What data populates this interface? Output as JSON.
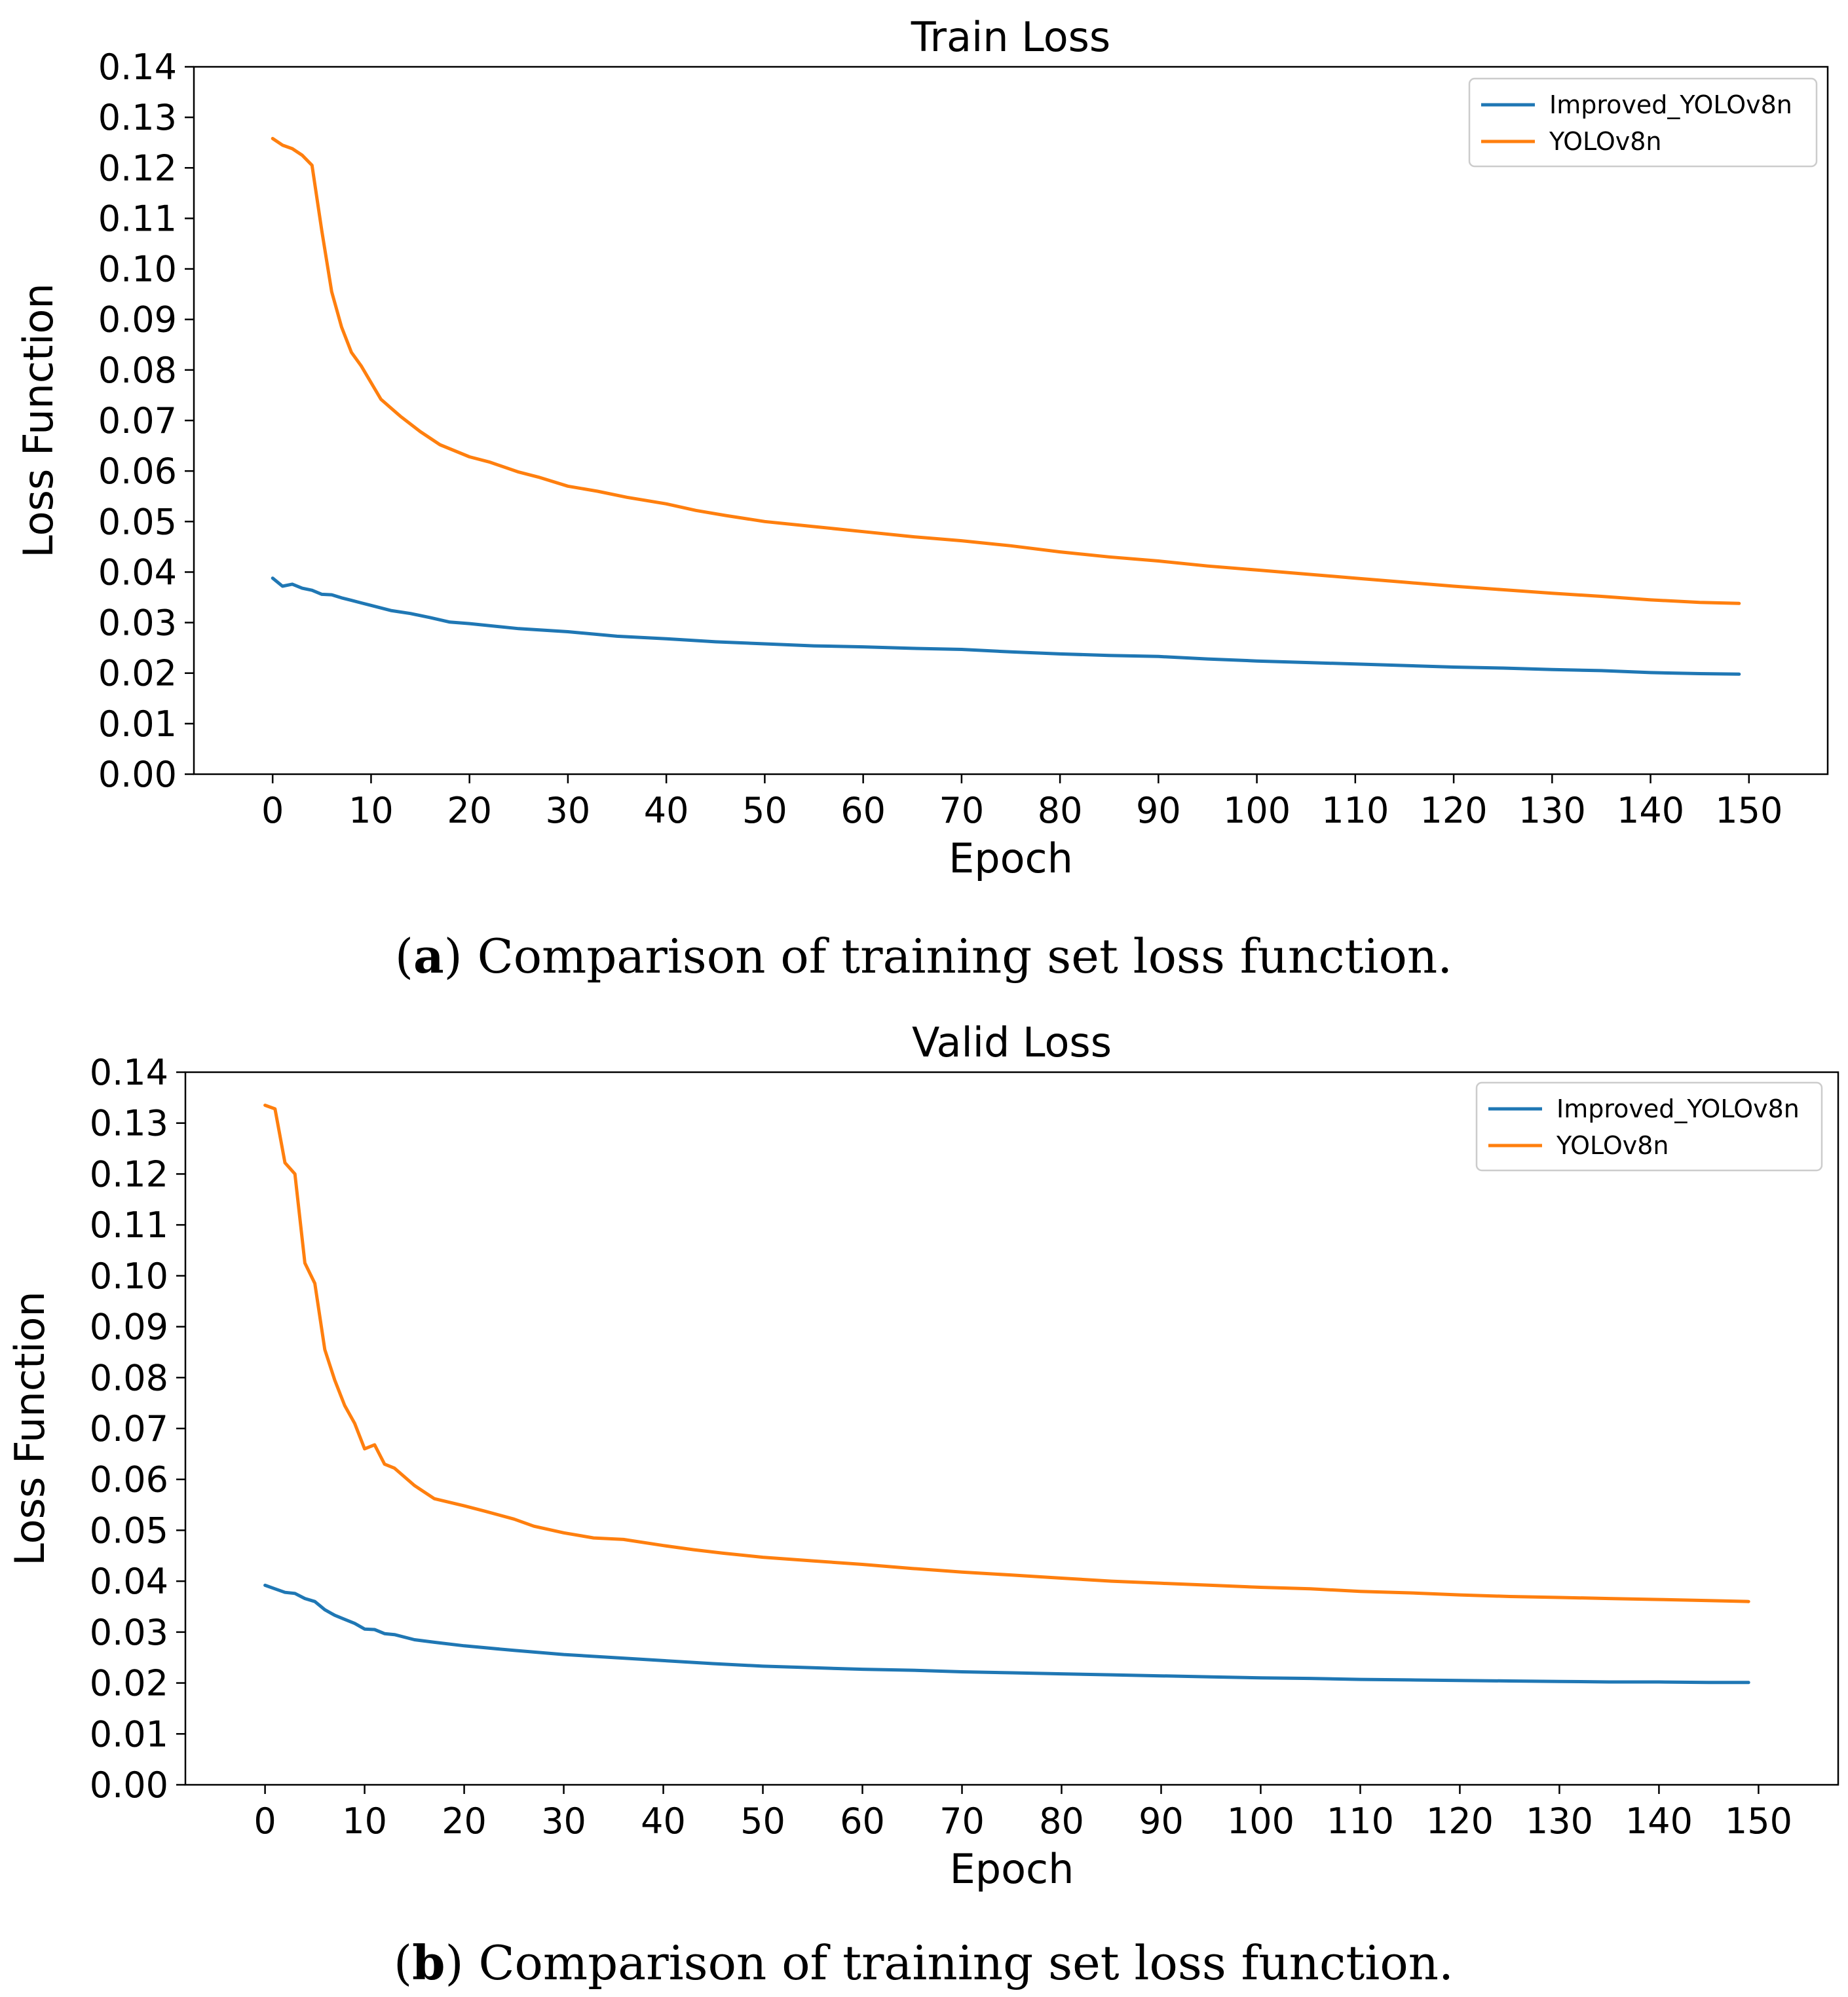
{
  "colors": {
    "improved": "#1f77b4",
    "yolo": "#ff7f0e",
    "axis": "#000000",
    "legend_border": "#cccccc"
  },
  "chart_data": [
    {
      "type": "line",
      "title": "Train Loss",
      "xlabel": "Epoch",
      "ylabel": "Loss Function",
      "xlim": [
        -8,
        158
      ],
      "ylim": [
        0,
        0.14
      ],
      "xticks": [
        0,
        10,
        20,
        30,
        40,
        50,
        60,
        70,
        80,
        90,
        100,
        110,
        120,
        130,
        140,
        150
      ],
      "yticks": [
        0.0,
        0.01,
        0.02,
        0.03,
        0.04,
        0.05,
        0.06,
        0.07,
        0.08,
        0.09,
        0.1,
        0.11,
        0.12,
        0.13,
        0.14
      ],
      "grid": false,
      "legend": "top-right",
      "caption_label": "a",
      "caption_text": ") Comparison of training set loss function.",
      "series": [
        {
          "name": "Improved_YOLOv8n",
          "color_key": "improved",
          "x": [
            0,
            1,
            2,
            3,
            4,
            5,
            6,
            7,
            8,
            9,
            10,
            12,
            14,
            16,
            18,
            20,
            25,
            30,
            35,
            40,
            45,
            50,
            55,
            60,
            65,
            70,
            75,
            80,
            85,
            90,
            95,
            100,
            105,
            110,
            115,
            120,
            125,
            130,
            135,
            140,
            145,
            149
          ],
          "values": [
            0.0388,
            0.0372,
            0.0376,
            0.0368,
            0.0364,
            0.0356,
            0.0355,
            0.0349,
            0.0344,
            0.0339,
            0.0334,
            0.0324,
            0.0318,
            0.031,
            0.0301,
            0.0298,
            0.0288,
            0.0282,
            0.0273,
            0.0268,
            0.0262,
            0.0258,
            0.0254,
            0.0252,
            0.0249,
            0.0247,
            0.0242,
            0.0238,
            0.0235,
            0.0233,
            0.0228,
            0.0224,
            0.0221,
            0.0218,
            0.0215,
            0.0212,
            0.021,
            0.0207,
            0.0205,
            0.0201,
            0.0199,
            0.0198
          ]
        },
        {
          "name": "YOLOv8n",
          "color_key": "yolo",
          "x": [
            0,
            1,
            2,
            3,
            4,
            5,
            6,
            7,
            8,
            9,
            10,
            11,
            12,
            13,
            15,
            17,
            20,
            22,
            25,
            27,
            30,
            33,
            36,
            40,
            43,
            46,
            50,
            55,
            60,
            65,
            70,
            75,
            80,
            85,
            90,
            95,
            100,
            105,
            110,
            115,
            120,
            125,
            130,
            135,
            140,
            145,
            149
          ],
          "values": [
            0.1258,
            0.1245,
            0.1238,
            0.1225,
            0.1205,
            0.1075,
            0.0955,
            0.0885,
            0.0835,
            0.0808,
            0.0775,
            0.0742,
            0.0725,
            0.0708,
            0.0678,
            0.0652,
            0.0628,
            0.0618,
            0.0598,
            0.0588,
            0.057,
            0.056,
            0.0548,
            0.0535,
            0.0522,
            0.0512,
            0.05,
            0.049,
            0.048,
            0.047,
            0.0462,
            0.0452,
            0.044,
            0.043,
            0.0422,
            0.0412,
            0.0404,
            0.0396,
            0.0388,
            0.038,
            0.0372,
            0.0365,
            0.0358,
            0.0352,
            0.0345,
            0.034,
            0.0338
          ]
        }
      ]
    },
    {
      "type": "line",
      "title": "Valid Loss",
      "xlabel": "Epoch",
      "ylabel": "Loss Function",
      "xlim": [
        -8,
        158
      ],
      "ylim": [
        0,
        0.14
      ],
      "xticks": [
        0,
        10,
        20,
        30,
        40,
        50,
        60,
        70,
        80,
        90,
        100,
        110,
        120,
        130,
        140,
        150
      ],
      "yticks": [
        0.0,
        0.01,
        0.02,
        0.03,
        0.04,
        0.05,
        0.06,
        0.07,
        0.08,
        0.09,
        0.1,
        0.11,
        0.12,
        0.13,
        0.14
      ],
      "grid": false,
      "legend": "top-right",
      "caption_label": "b",
      "caption_text": ") Comparison of training set loss function.",
      "series": [
        {
          "name": "Improved_YOLOv8n",
          "color_key": "improved",
          "x": [
            0,
            1,
            2,
            3,
            4,
            5,
            6,
            7,
            8,
            9,
            10,
            11,
            12,
            13,
            15,
            17,
            20,
            25,
            30,
            35,
            40,
            45,
            50,
            55,
            60,
            65,
            70,
            75,
            80,
            85,
            90,
            95,
            100,
            105,
            110,
            115,
            120,
            125,
            130,
            135,
            140,
            145,
            149
          ],
          "values": [
            0.0392,
            0.0385,
            0.0378,
            0.0376,
            0.0366,
            0.036,
            0.0344,
            0.0333,
            0.0325,
            0.0317,
            0.0306,
            0.0305,
            0.0297,
            0.0295,
            0.0285,
            0.028,
            0.0273,
            0.0264,
            0.0256,
            0.025,
            0.0244,
            0.0238,
            0.0233,
            0.023,
            0.0227,
            0.0225,
            0.0222,
            0.022,
            0.0218,
            0.0216,
            0.0214,
            0.0212,
            0.021,
            0.0209,
            0.0207,
            0.0206,
            0.0205,
            0.0204,
            0.0203,
            0.0202,
            0.0202,
            0.0201,
            0.0201
          ]
        },
        {
          "name": "YOLOv8n",
          "color_key": "yolo",
          "x": [
            0,
            1,
            2,
            3,
            4,
            5,
            6,
            7,
            8,
            9,
            10,
            11,
            12,
            13,
            15,
            17,
            20,
            22,
            25,
            27,
            30,
            33,
            36,
            40,
            43,
            46,
            50,
            55,
            60,
            65,
            70,
            75,
            80,
            85,
            90,
            95,
            100,
            105,
            110,
            115,
            120,
            125,
            130,
            135,
            140,
            145,
            149
          ],
          "values": [
            0.1335,
            0.1328,
            0.1222,
            0.12,
            0.1025,
            0.0985,
            0.0855,
            0.0795,
            0.0745,
            0.071,
            0.066,
            0.0668,
            0.063,
            0.0622,
            0.0588,
            0.0562,
            0.0548,
            0.0538,
            0.0522,
            0.0508,
            0.0495,
            0.0485,
            0.0482,
            0.047,
            0.0462,
            0.0455,
            0.0447,
            0.044,
            0.0433,
            0.0425,
            0.0418,
            0.0412,
            0.0406,
            0.04,
            0.0396,
            0.0392,
            0.0388,
            0.0385,
            0.038,
            0.0377,
            0.0373,
            0.037,
            0.0368,
            0.0366,
            0.0364,
            0.0362,
            0.036
          ]
        }
      ]
    }
  ]
}
